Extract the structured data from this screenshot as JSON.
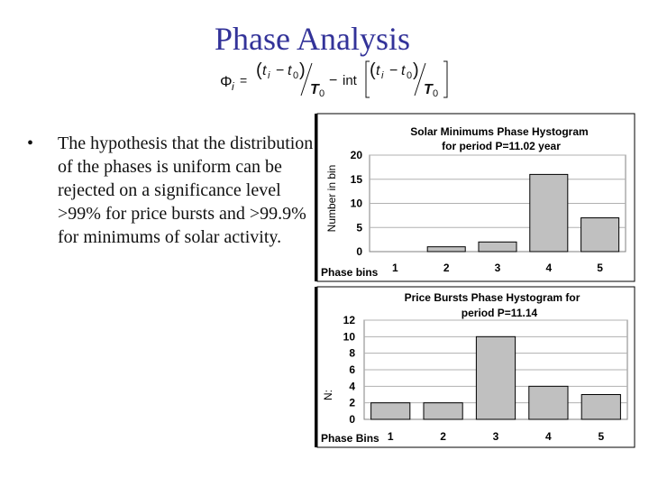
{
  "slide": {
    "title": "Phase Analysis",
    "bullet": "The hypothesis that the distribution of the phases is uniform can be rejected on a significance level >99% for price bursts and >99.9% for minimums of solar activity."
  },
  "formula": {
    "lhs": "Φ",
    "sub_i": "i",
    "eq": "=",
    "t": "t",
    "minus": "−",
    "zero": "0",
    "T": "T",
    "int": "int"
  },
  "chart_data": [
    {
      "type": "bar",
      "title": "Solar Minimums Phase Hystogram",
      "subtitle": "for period P=11.02 year",
      "xlabel": "Phase bins",
      "ylabel": "Number in bin",
      "categories": [
        "1",
        "2",
        "3",
        "4",
        "5"
      ],
      "values": [
        0,
        1,
        2,
        16,
        7
      ],
      "yticks": [
        "0",
        "5",
        "10",
        "15",
        "20"
      ],
      "ylim": [
        0,
        20
      ],
      "grid": true,
      "bar_color": "#c0c0c0",
      "plot_bg": "#ffffff"
    },
    {
      "type": "bar",
      "title": "Price Bursts Phase Hystogram for",
      "subtitle": "period P=11.14",
      "xlabel": "Phase Bins",
      "ylabel": "N:",
      "categories": [
        "1",
        "2",
        "3",
        "4",
        "5"
      ],
      "values": [
        2,
        2,
        10,
        4,
        3
      ],
      "yticks": [
        "0",
        "2",
        "4",
        "6",
        "8",
        "10",
        "12"
      ],
      "ylim": [
        0,
        12
      ],
      "grid": true,
      "bar_color": "#c0c0c0",
      "plot_bg": "#ffffff"
    }
  ]
}
